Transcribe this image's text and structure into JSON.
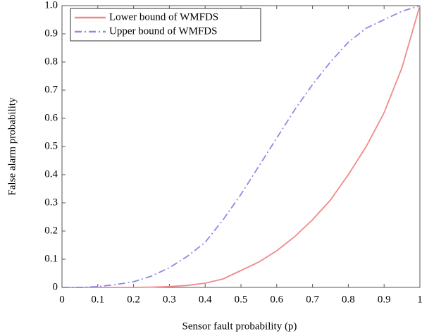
{
  "chart_data": {
    "type": "line",
    "xlabel": "Sensor fault probability (p)",
    "ylabel": "False alarm probability",
    "x": [
      0,
      0.05,
      0.1,
      0.15,
      0.2,
      0.25,
      0.3,
      0.35,
      0.4,
      0.45,
      0.5,
      0.55,
      0.6,
      0.65,
      0.7,
      0.75,
      0.8,
      0.85,
      0.9,
      0.95,
      1.0
    ],
    "series": [
      {
        "name": "Lower bound of WMFDS",
        "color": "#f08a8a",
        "dash": "solid",
        "values": [
          0,
          0,
          0,
          0,
          0,
          0.001,
          0.003,
          0.007,
          0.015,
          0.03,
          0.06,
          0.09,
          0.13,
          0.18,
          0.24,
          0.31,
          0.4,
          0.5,
          0.62,
          0.78,
          1.0
        ]
      },
      {
        "name": "Upper bound of WMFDS",
        "color": "#8c8ce6",
        "dash": "dashdot",
        "values": [
          0,
          0,
          0.003,
          0.01,
          0.02,
          0.04,
          0.07,
          0.11,
          0.16,
          0.24,
          0.33,
          0.43,
          0.53,
          0.63,
          0.72,
          0.8,
          0.87,
          0.92,
          0.95,
          0.98,
          1.0
        ]
      }
    ],
    "xlim": [
      0,
      1
    ],
    "ylim": [
      0,
      1
    ],
    "xticks": [
      0,
      0.1,
      0.2,
      0.3,
      0.4,
      0.5,
      0.6,
      0.7,
      0.8,
      0.9,
      1
    ],
    "yticks": [
      0,
      0.1,
      0.2,
      0.3,
      0.4,
      0.5,
      0.6,
      0.7,
      0.8,
      0.9,
      {
        "value": 1,
        "label": "1.0"
      }
    ],
    "grid": false,
    "legend": "upper left"
  }
}
